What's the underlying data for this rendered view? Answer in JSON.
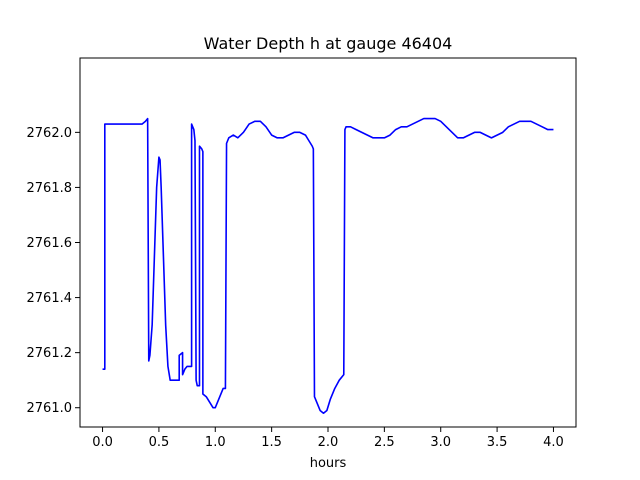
{
  "chart_data": {
    "type": "line",
    "title": "Water Depth h at gauge 46404",
    "xlabel": "hours",
    "ylabel": "",
    "xlim": [
      -0.2,
      4.2
    ],
    "ylim": [
      2760.93,
      2762.27
    ],
    "xticks": [
      0.0,
      0.5,
      1.0,
      1.5,
      2.0,
      2.5,
      3.0,
      3.5,
      4.0
    ],
    "xtick_labels": [
      "0.0",
      "0.5",
      "1.0",
      "1.5",
      "2.0",
      "2.5",
      "3.0",
      "3.5",
      "4.0"
    ],
    "yticks": [
      2761.0,
      2761.2,
      2761.4,
      2761.6,
      2761.8,
      2762.0
    ],
    "ytick_labels": [
      "2761.0",
      "2761.2",
      "2761.4",
      "2761.6",
      "2761.8",
      "2762.0"
    ],
    "grid": false,
    "legend": "none",
    "series": [
      {
        "color": "#0000ff",
        "x": [
          0.0,
          0.02,
          0.02,
          0.35,
          0.38,
          0.4,
          0.41,
          0.42,
          0.44,
          0.46,
          0.48,
          0.5,
          0.51,
          0.52,
          0.54,
          0.56,
          0.58,
          0.6,
          0.62,
          0.64,
          0.67,
          0.68,
          0.68,
          0.71,
          0.71,
          0.73,
          0.75,
          0.76,
          0.78,
          0.79,
          0.79,
          0.81,
          0.82,
          0.83,
          0.84,
          0.85,
          0.86,
          0.86,
          0.88,
          0.89,
          0.89,
          0.92,
          0.95,
          0.98,
          1.0,
          1.02,
          1.05,
          1.07,
          1.08,
          1.09,
          1.1,
          1.12,
          1.16,
          1.2,
          1.25,
          1.3,
          1.35,
          1.4,
          1.45,
          1.5,
          1.55,
          1.6,
          1.65,
          1.7,
          1.75,
          1.8,
          1.83,
          1.86,
          1.87,
          1.88,
          1.9,
          1.93,
          1.96,
          1.99,
          2.02,
          2.06,
          2.1,
          2.14,
          2.15,
          2.16,
          2.2,
          2.25,
          2.3,
          2.35,
          2.4,
          2.45,
          2.5,
          2.55,
          2.6,
          2.65,
          2.7,
          2.75,
          2.8,
          2.85,
          2.9,
          2.95,
          3.0,
          3.05,
          3.1,
          3.15,
          3.2,
          3.25,
          3.3,
          3.35,
          3.4,
          3.45,
          3.5,
          3.55,
          3.6,
          3.65,
          3.7,
          3.75,
          3.8,
          3.85,
          3.9,
          3.95,
          4.0
        ],
        "y": [
          2761.14,
          2761.14,
          2762.03,
          2762.03,
          2762.04,
          2762.05,
          2761.17,
          2761.19,
          2761.3,
          2761.55,
          2761.8,
          2761.91,
          2761.9,
          2761.8,
          2761.55,
          2761.3,
          2761.15,
          2761.1,
          2761.1,
          2761.1,
          2761.1,
          2761.1,
          2761.19,
          2761.2,
          2761.12,
          2761.14,
          2761.15,
          2761.15,
          2761.15,
          2761.15,
          2762.03,
          2762.01,
          2761.97,
          2761.1,
          2761.08,
          2761.08,
          2761.08,
          2761.95,
          2761.94,
          2761.93,
          2761.05,
          2761.04,
          2761.02,
          2761.0,
          2761.0,
          2761.02,
          2761.05,
          2761.07,
          2761.07,
          2761.07,
          2761.96,
          2761.98,
          2761.99,
          2761.98,
          2762.0,
          2762.03,
          2762.04,
          2762.04,
          2762.02,
          2761.99,
          2761.98,
          2761.98,
          2761.99,
          2762.0,
          2762.0,
          2761.99,
          2761.97,
          2761.95,
          2761.94,
          2761.04,
          2761.02,
          2760.99,
          2760.98,
          2760.99,
          2761.03,
          2761.07,
          2761.1,
          2761.12,
          2762.01,
          2762.02,
          2762.02,
          2762.01,
          2762.0,
          2761.99,
          2761.98,
          2761.98,
          2761.98,
          2761.99,
          2762.01,
          2762.02,
          2762.02,
          2762.03,
          2762.04,
          2762.05,
          2762.05,
          2762.05,
          2762.04,
          2762.02,
          2762.0,
          2761.98,
          2761.98,
          2761.99,
          2762.0,
          2762.0,
          2761.99,
          2761.98,
          2761.99,
          2762.0,
          2762.02,
          2762.03,
          2762.04,
          2762.04,
          2762.04,
          2762.03,
          2762.02,
          2762.01,
          2762.01
        ]
      }
    ]
  }
}
